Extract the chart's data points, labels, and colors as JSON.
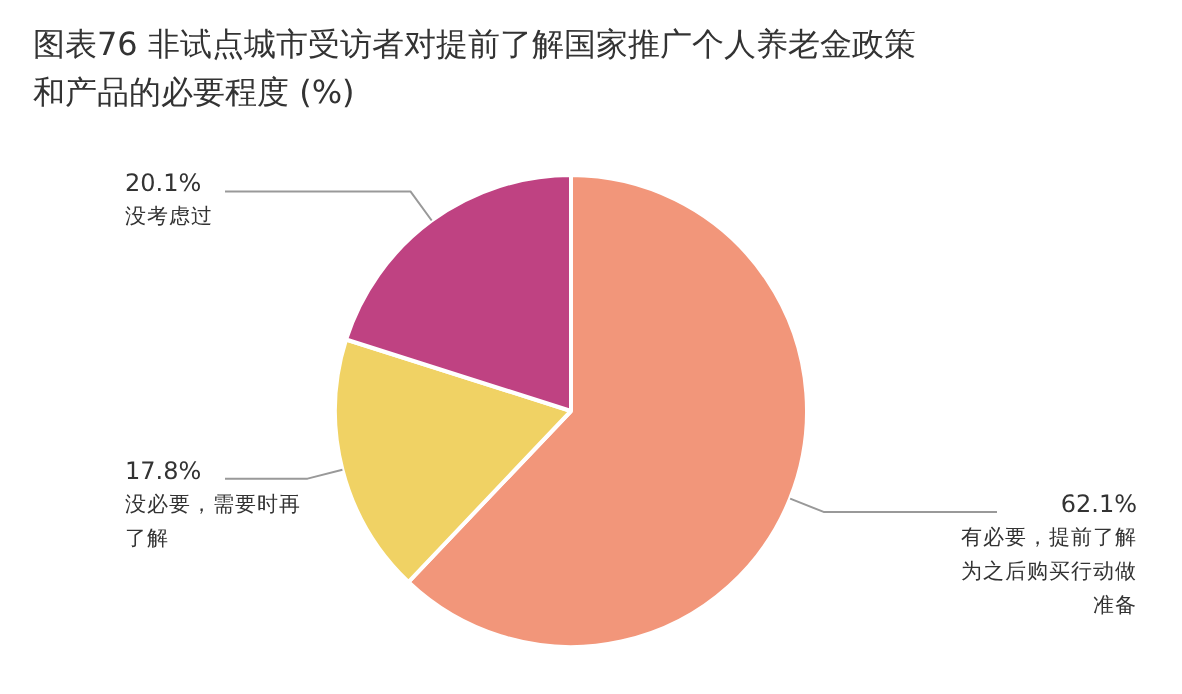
{
  "chart_data": {
    "type": "pie",
    "title": "图表76 非试点城市受访者对提前了解国家推广个人养老金政策和产品的必要程度 (%)",
    "categories": [
      "有必要，提前了解为之后购买行动做准备",
      "没必要，需要时再了解",
      "没考虑过"
    ],
    "values": [
      62.1,
      17.8,
      20.1
    ],
    "colors": [
      "#f2967a",
      "#f0d264",
      "#bf4282"
    ],
    "value_labels": [
      "62.1%",
      "17.8%",
      "20.1%"
    ]
  }
}
